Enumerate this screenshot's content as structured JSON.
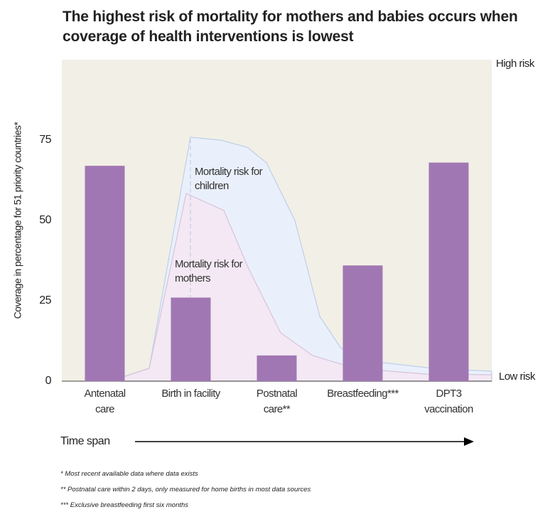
{
  "chart_data": {
    "type": "bar",
    "title": "The highest risk of mortality for mothers and babies occurs when coverage of health interventions is lowest",
    "y_label": "Coverage in percentage for 51 priority countries*",
    "x_label": "Time span",
    "categories": [
      "Antenatal care",
      "Birth in facility",
      "Postnatal care**",
      "Breastfeeding***",
      "DPT3 vaccination"
    ],
    "values": [
      67,
      26,
      8,
      36,
      68
    ],
    "color": "#a077b3",
    "ylim": [
      0,
      100
    ],
    "yticks": [
      0,
      25,
      50,
      75
    ],
    "annotations": {
      "high": "High risk",
      "low": "Low risk",
      "children": "Mortality risk for children",
      "mothers": "Mortality risk for mothers"
    },
    "notes": [
      "* Most recent available data where data exists",
      "** Postnatal care within 2 days, only measured for home births in most data sources",
      "*** Exclusive breastfeeding first six months"
    ]
  }
}
